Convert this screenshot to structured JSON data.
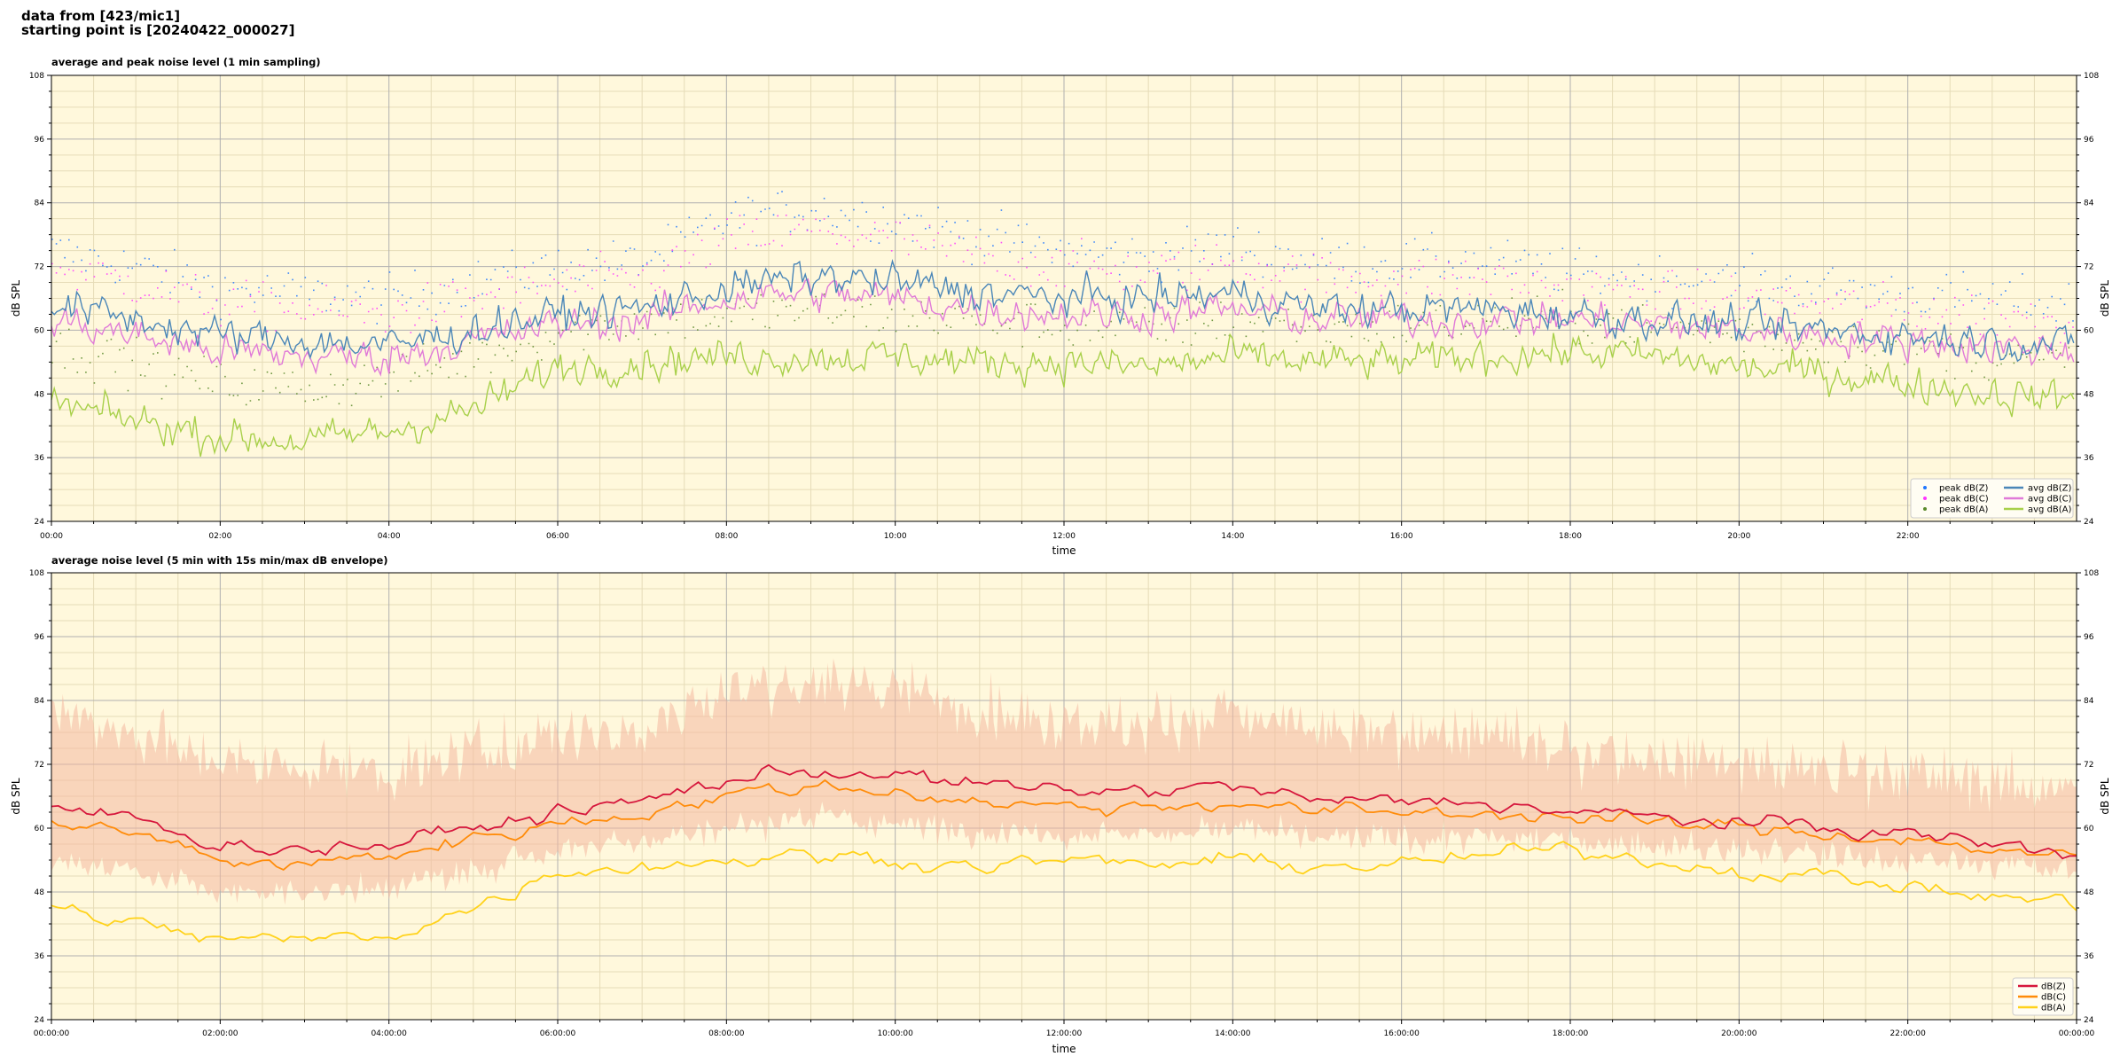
{
  "header": {
    "line1": "data from [423/mic1]",
    "line2": "starting point is [20240422_000027]"
  },
  "colors": {
    "plot_bg": "#fff8dc",
    "grid_major": "#b0b0b0",
    "grid_minor": "#e6dcb8",
    "peak_z": "#1f77ff",
    "peak_c": "#ff33ff",
    "peak_a": "#5a8a2a",
    "avg_z": "#4a86b8",
    "avg_c": "#e07ad8",
    "avg_a": "#a8d04a",
    "dbz": "#d6163c",
    "dbc": "#ff8c0a",
    "dba": "#ffd21a",
    "envelope": "#f4b8a0"
  },
  "chart_data": [
    {
      "type": "line",
      "title": "average and peak noise level (1 min sampling)",
      "xlabel": "time",
      "ylabel": "dB SPL",
      "ylim": [
        24,
        108
      ],
      "xlim": [
        "00:00",
        "24:00"
      ],
      "yticks": [
        "24",
        "36",
        "48",
        "60",
        "72",
        "84",
        "96",
        "108"
      ],
      "xticks": [
        "00:00",
        "02:00",
        "04:00",
        "06:00",
        "08:00",
        "10:00",
        "12:00",
        "14:00",
        "16:00",
        "18:00",
        "20:00",
        "22:00"
      ],
      "grid": true,
      "legend_position": "bottom-right",
      "series_hourly_hours": [
        0,
        1,
        2,
        3,
        4,
        5,
        6,
        7,
        8,
        9,
        10,
        11,
        12,
        13,
        14,
        15,
        16,
        17,
        18,
        19,
        20,
        21,
        22,
        23,
        24
      ],
      "series": [
        {
          "name": "avg dB(Z)",
          "style": "line",
          "values": [
            65,
            62,
            59,
            58,
            57,
            60,
            63,
            64,
            68,
            70,
            69,
            67,
            66,
            66,
            67,
            64,
            64,
            64,
            63,
            62,
            61,
            60,
            59,
            58,
            57
          ]
        },
        {
          "name": "avg dB(C)",
          "style": "line",
          "values": [
            62,
            59,
            56,
            55,
            55,
            58,
            61,
            62,
            66,
            67,
            66,
            64,
            63,
            63,
            64,
            62,
            62,
            62,
            62,
            61,
            60,
            59,
            58,
            57,
            56
          ]
        },
        {
          "name": "avg dB(A)",
          "style": "line",
          "values": [
            46,
            43,
            40,
            39,
            41,
            45,
            53,
            54,
            55,
            55,
            55,
            54,
            54,
            53,
            55,
            54,
            54,
            55,
            56,
            55,
            53,
            52,
            50,
            48,
            47
          ]
        },
        {
          "name": "peak dB(Z)",
          "style": "dots",
          "values": [
            75,
            72,
            68,
            67,
            66,
            69,
            72,
            73,
            81,
            83,
            81,
            78,
            75,
            74,
            76,
            73,
            73,
            73,
            71,
            70,
            69,
            68,
            67,
            66,
            65
          ]
        },
        {
          "name": "peak dB(C)",
          "style": "dots",
          "values": [
            72,
            69,
            65,
            64,
            63,
            66,
            69,
            70,
            77,
            79,
            77,
            74,
            72,
            71,
            73,
            70,
            70,
            70,
            68,
            67,
            66,
            65,
            64,
            63,
            62
          ]
        },
        {
          "name": "peak dB(A)",
          "style": "dots",
          "values": [
            57,
            54,
            50,
            49,
            51,
            55,
            60,
            62,
            63,
            64,
            63,
            62,
            61,
            60,
            62,
            61,
            61,
            62,
            62,
            61,
            60,
            58,
            57,
            55,
            54
          ]
        }
      ],
      "legend": [
        "peak dB(Z)",
        "peak dB(C)",
        "peak dB(A)",
        "avg dB(Z)",
        "avg dB(C)",
        "avg dB(A)"
      ]
    },
    {
      "type": "line",
      "title": "average noise level (5 min with 15s min/max dB envelope)",
      "xlabel": "time",
      "ylabel": "dB SPL",
      "ylim": [
        24,
        108
      ],
      "xlim": [
        "00:00:00",
        "24:00:00"
      ],
      "yticks": [
        "24",
        "36",
        "48",
        "60",
        "72",
        "84",
        "96",
        "108"
      ],
      "xticks": [
        "00:00:00",
        "02:00:00",
        "04:00:00",
        "06:00:00",
        "08:00:00",
        "10:00:00",
        "12:00:00",
        "14:00:00",
        "16:00:00",
        "18:00:00",
        "20:00:00",
        "22:00:00",
        "00:00:00"
      ],
      "grid": true,
      "legend_position": "bottom-right",
      "series_hourly_hours": [
        0,
        1,
        2,
        3,
        4,
        5,
        6,
        7,
        8,
        9,
        10,
        11,
        12,
        13,
        14,
        15,
        16,
        17,
        18,
        19,
        20,
        21,
        22,
        23,
        24
      ],
      "series": [
        {
          "name": "dB(Z)",
          "values": [
            64,
            62,
            57,
            56,
            57,
            60,
            63,
            65,
            69,
            71,
            70,
            68,
            67,
            67,
            68,
            65,
            65,
            65,
            63,
            62,
            61,
            60,
            59,
            57,
            55
          ]
        },
        {
          "name": "dB(C)",
          "values": [
            61,
            59,
            54,
            53,
            55,
            58,
            61,
            63,
            66,
            68,
            67,
            65,
            64,
            64,
            65,
            63,
            63,
            63,
            62,
            61,
            60,
            59,
            58,
            56,
            54
          ]
        },
        {
          "name": "dB(A)",
          "values": [
            45,
            42,
            39,
            39,
            40,
            45,
            52,
            53,
            54,
            55,
            54,
            53,
            54,
            53,
            54,
            53,
            53,
            55,
            56,
            54,
            52,
            51,
            49,
            47,
            46
          ]
        }
      ],
      "envelope": {
        "min": [
          54,
          52,
          48,
          48,
          49,
          52,
          56,
          58,
          60,
          62,
          61,
          59,
          59,
          59,
          60,
          58,
          58,
          58,
          58,
          57,
          56,
          55,
          54,
          53,
          52
        ],
        "max": [
          82,
          78,
          72,
          72,
          70,
          74,
          78,
          78,
          86,
          88,
          86,
          83,
          80,
          79,
          82,
          78,
          78,
          78,
          74,
          73,
          72,
          71,
          70,
          69,
          68
        ]
      },
      "legend": [
        "dB(Z)",
        "dB(C)",
        "dB(A)"
      ]
    }
  ]
}
